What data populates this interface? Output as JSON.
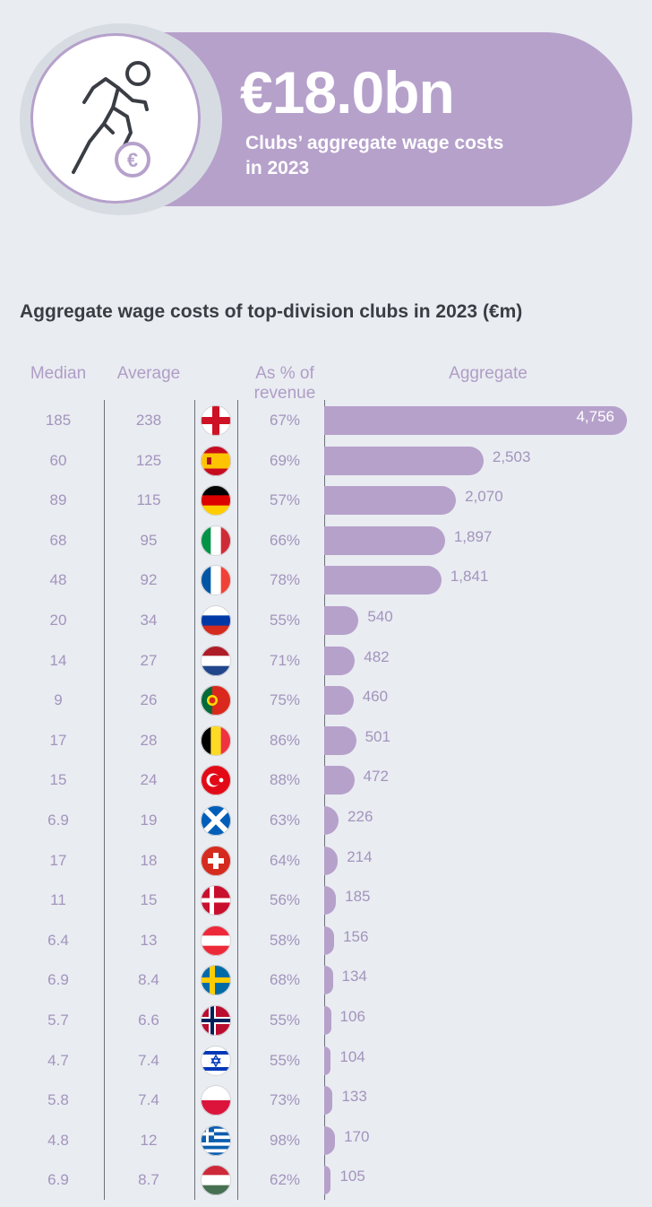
{
  "hero": {
    "value": "€18.0bn",
    "caption": "Clubs’ aggregate wage costs in 2023",
    "icon": "footballer-euro-icon"
  },
  "colors": {
    "accent": "#b6a1cb",
    "background": "#e9ecf1",
    "text_muted": "#a394bd"
  },
  "chart_data": {
    "type": "table",
    "title": "Aggregate wage costs of top-division clubs in 2023 (€m)",
    "columns": [
      "Median",
      "Average",
      "",
      "As % of revenue",
      "Aggregate"
    ],
    "rows": [
      {
        "flag": "england",
        "median": "185",
        "average": "238",
        "pct": "67%",
        "aggregate": 4756,
        "aggregate_label": "4,756"
      },
      {
        "flag": "spain",
        "median": "60",
        "average": "125",
        "pct": "69%",
        "aggregate": 2503,
        "aggregate_label": "2,503"
      },
      {
        "flag": "germany",
        "median": "89",
        "average": "115",
        "pct": "57%",
        "aggregate": 2070,
        "aggregate_label": "2,070"
      },
      {
        "flag": "italy",
        "median": "68",
        "average": "95",
        "pct": "66%",
        "aggregate": 1897,
        "aggregate_label": "1,897"
      },
      {
        "flag": "france",
        "median": "48",
        "average": "92",
        "pct": "78%",
        "aggregate": 1841,
        "aggregate_label": "1,841"
      },
      {
        "flag": "russia",
        "median": "20",
        "average": "34",
        "pct": "55%",
        "aggregate": 540,
        "aggregate_label": "540"
      },
      {
        "flag": "netherlands",
        "median": "14",
        "average": "27",
        "pct": "71%",
        "aggregate": 482,
        "aggregate_label": "482"
      },
      {
        "flag": "portugal",
        "median": "9",
        "average": "26",
        "pct": "75%",
        "aggregate": 460,
        "aggregate_label": "460"
      },
      {
        "flag": "belgium",
        "median": "17",
        "average": "28",
        "pct": "86%",
        "aggregate": 501,
        "aggregate_label": "501"
      },
      {
        "flag": "turkey",
        "median": "15",
        "average": "24",
        "pct": "88%",
        "aggregate": 472,
        "aggregate_label": "472"
      },
      {
        "flag": "scotland",
        "median": "6.9",
        "average": "19",
        "pct": "63%",
        "aggregate": 226,
        "aggregate_label": "226"
      },
      {
        "flag": "switzerland",
        "median": "17",
        "average": "18",
        "pct": "64%",
        "aggregate": 214,
        "aggregate_label": "214"
      },
      {
        "flag": "denmark",
        "median": "11",
        "average": "15",
        "pct": "56%",
        "aggregate": 185,
        "aggregate_label": "185"
      },
      {
        "flag": "austria",
        "median": "6.4",
        "average": "13",
        "pct": "58%",
        "aggregate": 156,
        "aggregate_label": "156"
      },
      {
        "flag": "sweden",
        "median": "6.9",
        "average": "8.4",
        "pct": "68%",
        "aggregate": 134,
        "aggregate_label": "134"
      },
      {
        "flag": "norway",
        "median": "5.7",
        "average": "6.6",
        "pct": "55%",
        "aggregate": 106,
        "aggregate_label": "106"
      },
      {
        "flag": "israel",
        "median": "4.7",
        "average": "7.4",
        "pct": "55%",
        "aggregate": 104,
        "aggregate_label": "104"
      },
      {
        "flag": "poland",
        "median": "5.8",
        "average": "7.4",
        "pct": "73%",
        "aggregate": 133,
        "aggregate_label": "133"
      },
      {
        "flag": "greece",
        "median": "4.8",
        "average": "12",
        "pct": "98%",
        "aggregate": 170,
        "aggregate_label": "170"
      },
      {
        "flag": "hungary",
        "median": "6.9",
        "average": "8.7",
        "pct": "62%",
        "aggregate": 105,
        "aggregate_label": "105"
      }
    ]
  }
}
